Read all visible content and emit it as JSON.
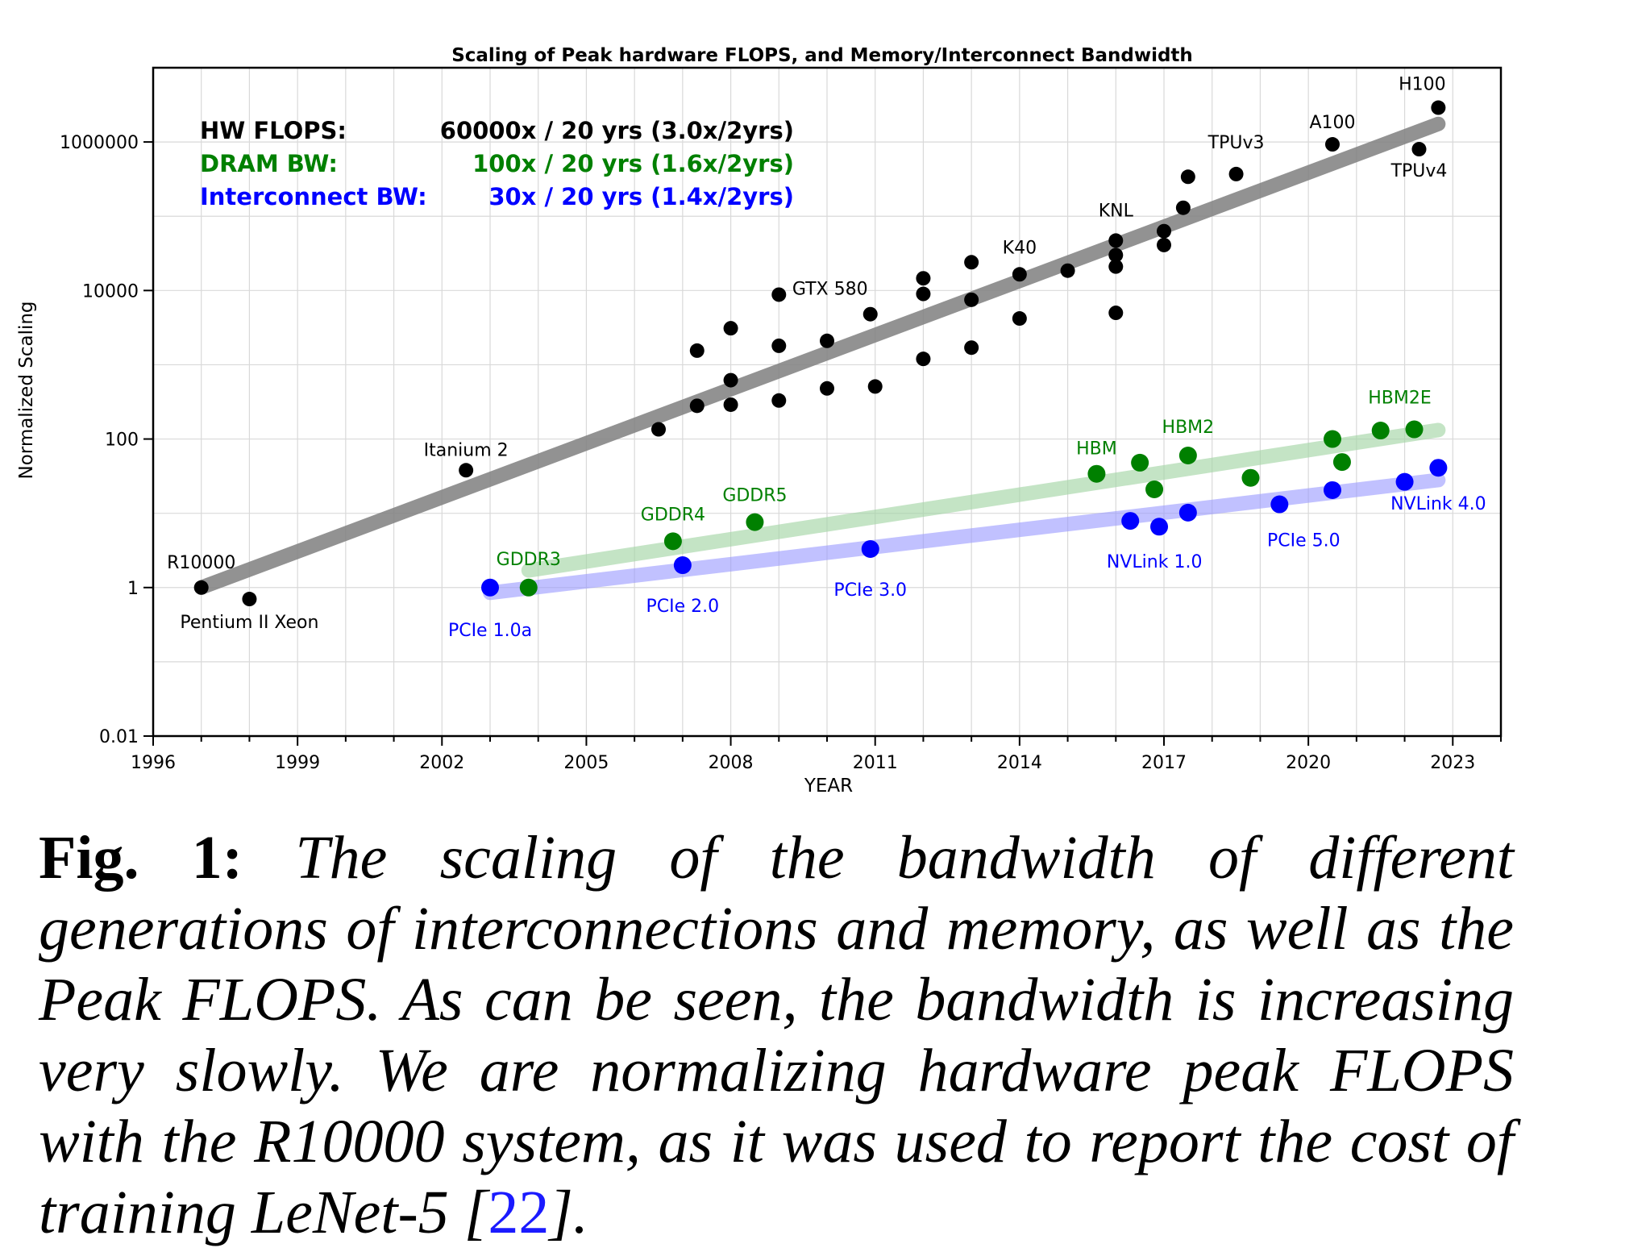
{
  "chart_data": {
    "type": "scatter",
    "title": "Scaling of Peak hardware FLOPS, and Memory/Interconnect Bandwidth",
    "xlabel": "YEAR",
    "ylabel": "Normalized Scaling",
    "xlim": [
      1996,
      2024
    ],
    "ylim": [
      0.01,
      10000000
    ],
    "yscale": "log",
    "grid": true,
    "x_ticks": [
      1996,
      1999,
      2002,
      2005,
      2008,
      2011,
      2014,
      2017,
      2020,
      2023
    ],
    "y_ticks": [
      0.01,
      1,
      100,
      10000,
      1000000
    ],
    "x_tick_labels": [
      "1996",
      "1999",
      "2002",
      "2005",
      "2008",
      "2011",
      "2014",
      "2017",
      "2020",
      "2023"
    ],
    "y_tick_labels": [
      "0.01",
      "1",
      "100",
      "10000",
      "1000000"
    ],
    "legend": [
      {
        "name": "HW FLOPS:",
        "value": "60000x / 20 yrs (3.0x/2yrs)",
        "color": "#000000"
      },
      {
        "name": "DRAM BW:",
        "value": "100x / 20 yrs (1.6x/2yrs)",
        "color": "#008000"
      },
      {
        "name": "Interconnect BW:",
        "value": "30x / 20 yrs (1.4x/2yrs)",
        "color": "#0000ff"
      }
    ],
    "series": [
      {
        "key": "flops",
        "color": "#000000",
        "trend_color": "#808080",
        "trend": {
          "x": [
            1997,
            2022.7
          ],
          "y": [
            1.0,
            1750000
          ]
        },
        "points": [
          {
            "x": 1997.0,
            "y": 1.0,
            "label": "R10000"
          },
          {
            "x": 1998.0,
            "y": 0.7,
            "label": "Pentium II Xeon"
          },
          {
            "x": 2002.5,
            "y": 38,
            "label": "Itanium 2"
          },
          {
            "x": 2006.5,
            "y": 135,
            "label": ""
          },
          {
            "x": 2007.3,
            "y": 280,
            "label": ""
          },
          {
            "x": 2007.3,
            "y": 1550,
            "label": ""
          },
          {
            "x": 2008.0,
            "y": 290,
            "label": ""
          },
          {
            "x": 2008.0,
            "y": 620,
            "label": ""
          },
          {
            "x": 2008.0,
            "y": 3100,
            "label": ""
          },
          {
            "x": 2009.0,
            "y": 330,
            "label": ""
          },
          {
            "x": 2009.0,
            "y": 1800,
            "label": ""
          },
          {
            "x": 2009.0,
            "y": 8800,
            "label": ""
          },
          {
            "x": 2010.0,
            "y": 480,
            "label": ""
          },
          {
            "x": 2010.0,
            "y": 2100,
            "label": ""
          },
          {
            "x": 2010.9,
            "y": 4800,
            "label": "GTX 580"
          },
          {
            "x": 2011.0,
            "y": 510,
            "label": ""
          },
          {
            "x": 2012.0,
            "y": 1200,
            "label": ""
          },
          {
            "x": 2012.0,
            "y": 9000,
            "label": ""
          },
          {
            "x": 2012.0,
            "y": 14600,
            "label": ""
          },
          {
            "x": 2013.0,
            "y": 1700,
            "label": ""
          },
          {
            "x": 2013.0,
            "y": 7500,
            "label": ""
          },
          {
            "x": 2013.0,
            "y": 24000,
            "label": ""
          },
          {
            "x": 2014.0,
            "y": 4200,
            "label": ""
          },
          {
            "x": 2014.0,
            "y": 16500,
            "label": "K40"
          },
          {
            "x": 2015.0,
            "y": 18500,
            "label": ""
          },
          {
            "x": 2016.0,
            "y": 5000,
            "label": ""
          },
          {
            "x": 2016.0,
            "y": 21000,
            "label": ""
          },
          {
            "x": 2016.0,
            "y": 30000,
            "label": ""
          },
          {
            "x": 2016.0,
            "y": 47000,
            "label": "KNL"
          },
          {
            "x": 2017.0,
            "y": 41000,
            "label": ""
          },
          {
            "x": 2017.0,
            "y": 63000,
            "label": ""
          },
          {
            "x": 2017.4,
            "y": 130000,
            "label": ""
          },
          {
            "x": 2017.5,
            "y": 340000,
            "label": ""
          },
          {
            "x": 2018.5,
            "y": 370000,
            "label": "TPUv3"
          },
          {
            "x": 2020.5,
            "y": 930000,
            "label": "A100"
          },
          {
            "x": 2022.3,
            "y": 800000,
            "label": "TPUv4"
          },
          {
            "x": 2022.7,
            "y": 2900000,
            "label": "H100"
          }
        ]
      },
      {
        "key": "dram",
        "color": "#008000",
        "trend_color": "#a5d6a7",
        "trend": {
          "x": [
            2003.8,
            2022.7
          ],
          "y": [
            1.7,
            132
          ]
        },
        "points": [
          {
            "x": 2003.8,
            "y": 1.0,
            "label": "GDDR3"
          },
          {
            "x": 2006.8,
            "y": 4.2,
            "label": "GDDR4"
          },
          {
            "x": 2008.5,
            "y": 7.6,
            "label": "GDDR5"
          },
          {
            "x": 2015.6,
            "y": 34,
            "label": "HBM"
          },
          {
            "x": 2016.5,
            "y": 48,
            "label": ""
          },
          {
            "x": 2016.8,
            "y": 21,
            "label": ""
          },
          {
            "x": 2017.5,
            "y": 60,
            "label": "HBM2"
          },
          {
            "x": 2018.8,
            "y": 30,
            "label": ""
          },
          {
            "x": 2020.5,
            "y": 100,
            "label": ""
          },
          {
            "x": 2020.7,
            "y": 49,
            "label": ""
          },
          {
            "x": 2021.5,
            "y": 130,
            "label": ""
          },
          {
            "x": 2022.2,
            "y": 135,
            "label": "HBM2E"
          }
        ]
      },
      {
        "key": "interconnect",
        "color": "#0000ff",
        "trend_color": "#9999ff",
        "trend": {
          "x": [
            2003.0,
            2022.7
          ],
          "y": [
            0.85,
            28
          ]
        },
        "points": [
          {
            "x": 2003.0,
            "y": 1.0,
            "label": "PCIe 1.0a"
          },
          {
            "x": 2007.0,
            "y": 2.0,
            "label": "PCIe 2.0"
          },
          {
            "x": 2010.9,
            "y": 3.3,
            "label": "PCIe 3.0"
          },
          {
            "x": 2016.3,
            "y": 7.9,
            "label": "NVLink 1.0"
          },
          {
            "x": 2016.9,
            "y": 6.6,
            "label": ""
          },
          {
            "x": 2017.5,
            "y": 10.2,
            "label": ""
          },
          {
            "x": 2019.4,
            "y": 13.2,
            "label": "PCIe 5.0"
          },
          {
            "x": 2020.5,
            "y": 20.5,
            "label": ""
          },
          {
            "x": 2022.0,
            "y": 26.5,
            "label": ""
          },
          {
            "x": 2022.7,
            "y": 41,
            "label": "NVLink 4.0"
          }
        ]
      }
    ]
  },
  "caption": {
    "lead": "Fig. 1:",
    "body": " The scaling of the bandwidth of different generations of interconnections and memory, as well as the Peak FLOPS. As can be seen, the bandwidth is increasing very slowly. We are normalizing hardware peak FLOPS with the R10000 system, as it was used to report the cost of training LeNet-5 [",
    "ref": "22",
    "tail": "]."
  }
}
